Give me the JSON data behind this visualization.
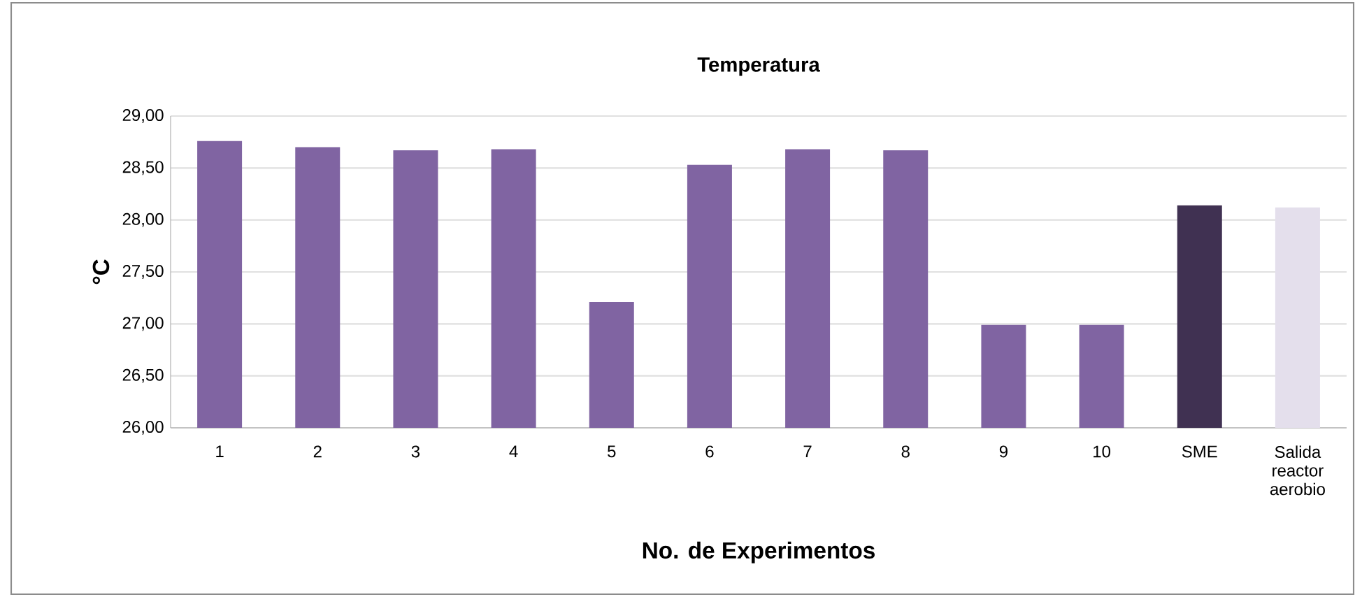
{
  "chart_data": {
    "type": "bar",
    "title": "Temperatura",
    "xlabel": "No. de Experimentos",
    "ylabel": "°C",
    "categories": [
      "1",
      "2",
      "3",
      "4",
      "5",
      "6",
      "7",
      "8",
      "9",
      "10",
      "SME",
      "Salida reactor aerobio"
    ],
    "values": [
      28.76,
      28.7,
      28.67,
      28.68,
      27.21,
      28.53,
      28.68,
      28.67,
      26.99,
      26.99,
      28.14,
      28.12
    ],
    "colors": [
      "#8064a2",
      "#8064a2",
      "#8064a2",
      "#8064a2",
      "#8064a2",
      "#8064a2",
      "#8064a2",
      "#8064a2",
      "#8064a2",
      "#8064a2",
      "#403152",
      "#e4dfec"
    ],
    "ylim": [
      26,
      29
    ],
    "yticks": [
      {
        "value": 26,
        "label": "26,00"
      },
      {
        "value": 26.5,
        "label": "26,50"
      },
      {
        "value": 27,
        "label": "27,00"
      },
      {
        "value": 27.5,
        "label": "27,50"
      },
      {
        "value": 28,
        "label": "28,00"
      },
      {
        "value": 28.5,
        "label": "28,50"
      },
      {
        "value": 29,
        "label": "29,00"
      }
    ],
    "grid": "y"
  }
}
